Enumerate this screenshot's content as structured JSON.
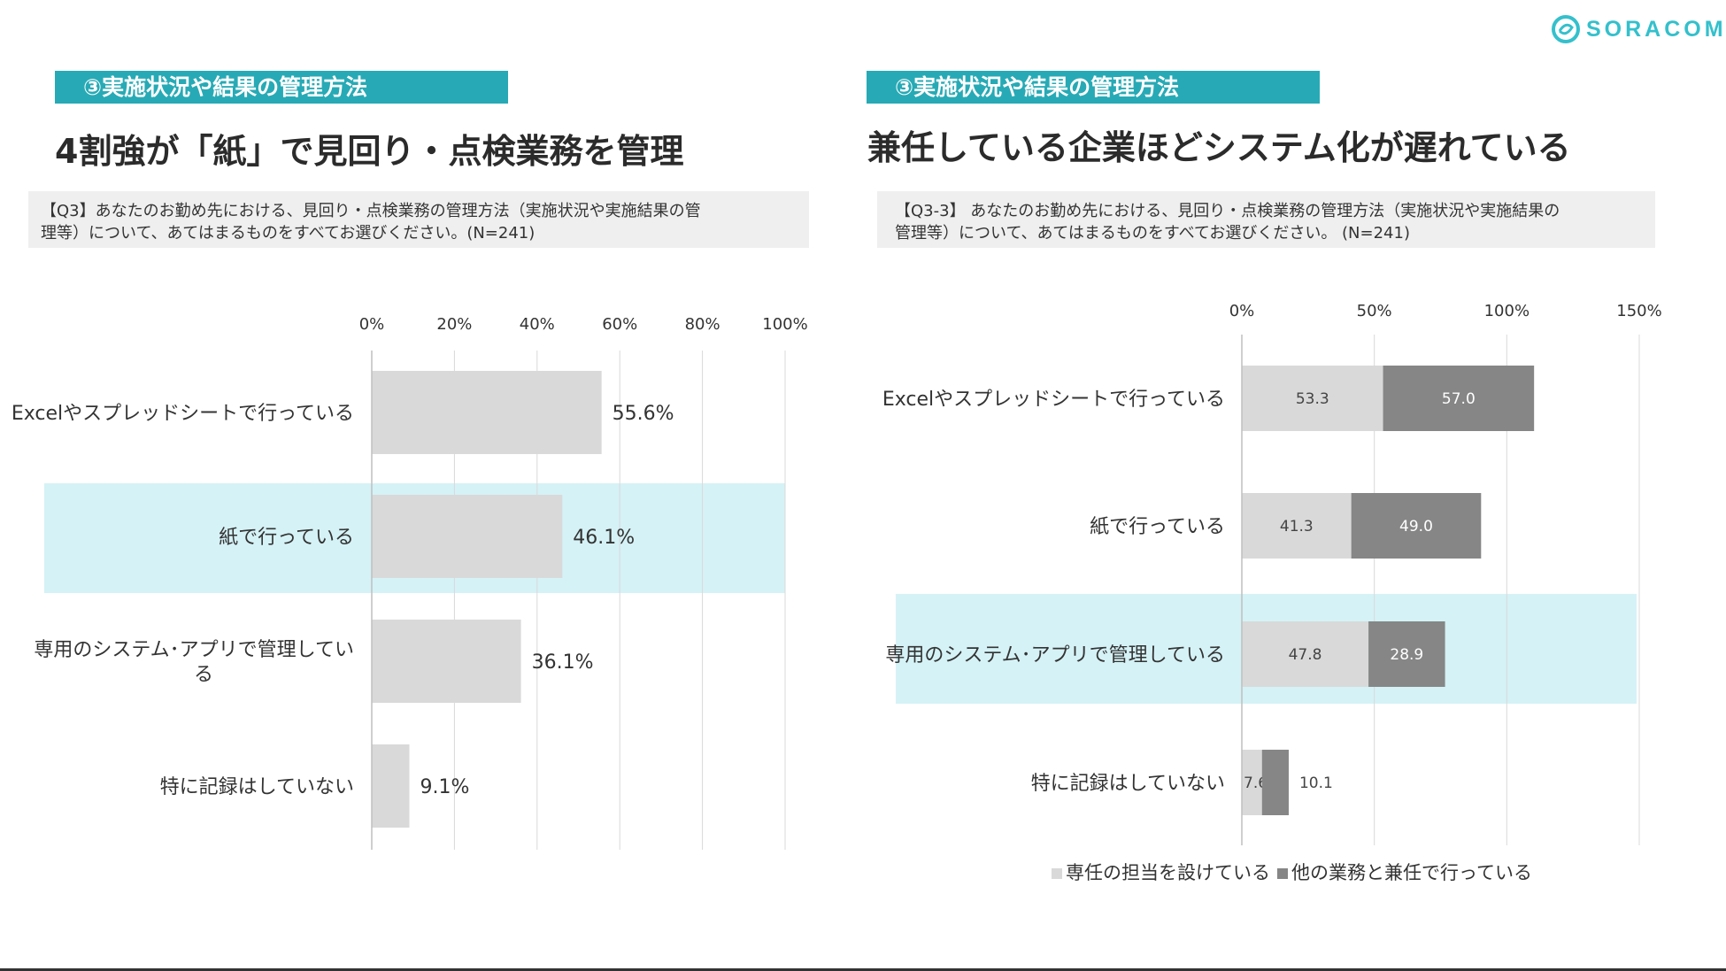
{
  "brand": {
    "name": "SORACOM",
    "accent": "#27aab5",
    "logo_icon": "soracom-logo-icon"
  },
  "left_panel": {
    "section_label": "③実施状況や結果の管理方法",
    "headline": "4割強が「紙」で見回り・点検業務を管理",
    "question_line1": "【Q3】あなたのお勤め先における、見回り・点検業務の管理方法（実施状況や実施結果の管",
    "question_line2": "理等）について、あてはまるものをすべてお選びください。(N=241)"
  },
  "right_panel": {
    "section_label": "③実施状況や結果の管理方法",
    "headline": "兼任している企業ほどシステム化が遅れている",
    "question_line1": "【Q3-3】 あなたのお勤め先における、見回り・点検業務の管理方法（実施状況や実施結果の",
    "question_line2": "管理等）について、あてはまるものをすべてお選びください。 (N=241)"
  },
  "chart_data": [
    {
      "type": "bar",
      "orientation": "horizontal",
      "categories": [
        "Excelやスプレッドシートで行っている",
        "紙で行っている",
        "専用のシステム･アプリで管理してい\nる",
        "特に記録はしていない"
      ],
      "values": [
        55.6,
        46.1,
        36.1,
        9.1
      ],
      "data_labels": [
        "55.6%",
        "46.1%",
        "36.1%",
        "9.1%"
      ],
      "xlim": [
        0,
        100
      ],
      "ticks": [
        0,
        20,
        40,
        60,
        80,
        100
      ],
      "tick_labels": [
        "0%",
        "20%",
        "40%",
        "60%",
        "80%",
        "100%"
      ],
      "highlight_index": 1,
      "bar_color": "#d9d9d9",
      "highlight_color": "#d5f2f6",
      "grid": true
    },
    {
      "type": "bar",
      "orientation": "horizontal",
      "stacked": true,
      "categories": [
        "Excelやスプレッドシートで行っている",
        "紙で行っている",
        "専用のシステム･アプリで管理している",
        "特に記録はしていない"
      ],
      "series": [
        {
          "name": "専任の担当を設けている",
          "values": [
            53.3,
            41.3,
            47.8,
            7.6
          ],
          "labels": [
            "53.3",
            "41.3",
            "47.8",
            "7.6"
          ],
          "color": "#d9d9d9",
          "label_color": "#444444"
        },
        {
          "name": "他の業務と兼任で行っている",
          "values": [
            57.0,
            49.0,
            28.9,
            10.1
          ],
          "labels": [
            "57.0",
            "49.0",
            "28.9",
            "10.1"
          ],
          "color": "#868686",
          "label_color": "#ffffff"
        }
      ],
      "xlim": [
        0,
        150
      ],
      "ticks": [
        0,
        50,
        100,
        150
      ],
      "tick_labels": [
        "0%",
        "50%",
        "100%",
        "150%"
      ],
      "highlight_index": 2,
      "highlight_color": "#d5f2f6",
      "legend": "bottom",
      "grid": true
    }
  ]
}
